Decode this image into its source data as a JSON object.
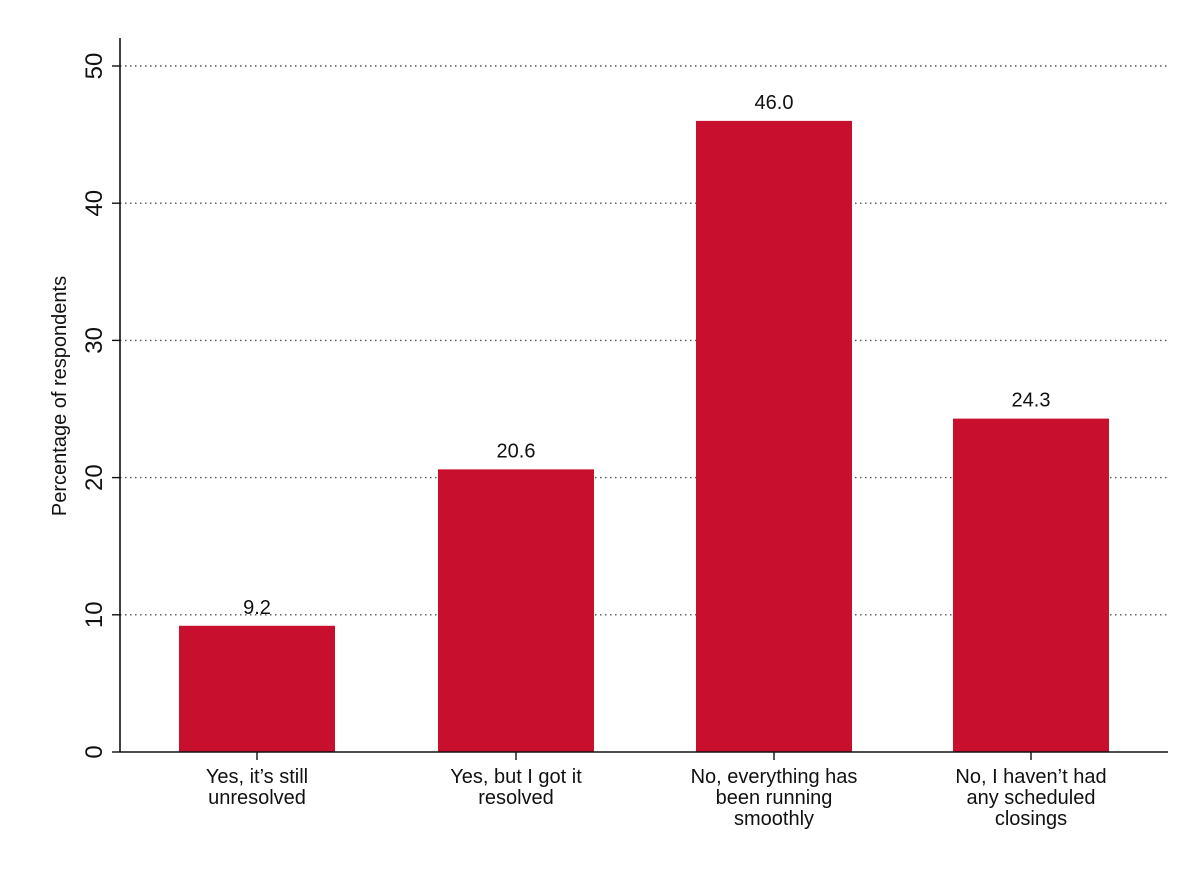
{
  "chart_data": {
    "type": "bar",
    "categories": [
      [
        "Yes, it’s still",
        "unresolved"
      ],
      [
        "Yes, but I got it",
        "resolved"
      ],
      [
        "No, everything has",
        "been running",
        "smoothly"
      ],
      [
        "No, I haven’t had",
        "any scheduled",
        "closings"
      ]
    ],
    "values": [
      9.2,
      20.6,
      46.0,
      24.3
    ],
    "data_labels": [
      "9.2",
      "20.6",
      "46.0",
      "24.3"
    ],
    "title": "",
    "xlabel": "",
    "ylabel": "Percentage of respondents",
    "ylim": [
      0,
      50
    ],
    "yticks": [
      0,
      10,
      20,
      30,
      40,
      50
    ],
    "grid": "horizontal-dotted",
    "legend": "none",
    "bar_color": "#c8102e",
    "grid_color": "#555555",
    "axis_color": "#111111"
  }
}
